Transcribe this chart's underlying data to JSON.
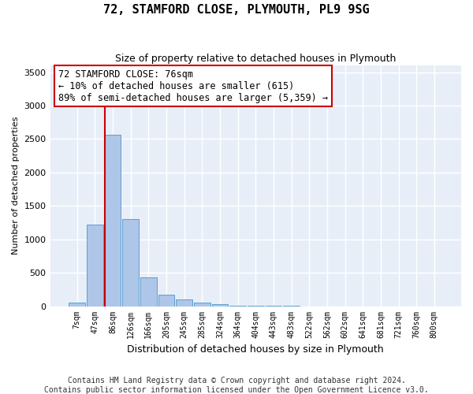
{
  "title1": "72, STAMFORD CLOSE, PLYMOUTH, PL9 9SG",
  "title2": "Size of property relative to detached houses in Plymouth",
  "xlabel": "Distribution of detached houses by size in Plymouth",
  "ylabel": "Number of detached properties",
  "annotation_line1": "72 STAMFORD CLOSE: 76sqm",
  "annotation_line2": "← 10% of detached houses are smaller (615)",
  "annotation_line3": "89% of semi-detached houses are larger (5,359) →",
  "footer1": "Contains HM Land Registry data © Crown copyright and database right 2024.",
  "footer2": "Contains public sector information licensed under the Open Government Licence v3.0.",
  "bar_labels": [
    "7sqm",
    "47sqm",
    "86sqm",
    "126sqm",
    "166sqm",
    "205sqm",
    "245sqm",
    "285sqm",
    "324sqm",
    "364sqm",
    "404sqm",
    "443sqm",
    "483sqm",
    "522sqm",
    "562sqm",
    "602sqm",
    "641sqm",
    "681sqm",
    "721sqm",
    "760sqm",
    "800sqm"
  ],
  "bar_values": [
    50,
    1220,
    2560,
    1300,
    430,
    175,
    105,
    50,
    25,
    10,
    5,
    2,
    1,
    0,
    0,
    0,
    0,
    0,
    0,
    0,
    0
  ],
  "bar_color": "#aec6e8",
  "bar_edgecolor": "#5a9fd4",
  "property_line_color": "#cc0000",
  "property_line_x": 1.57,
  "ylim": [
    0,
    3600
  ],
  "yticks": [
    0,
    500,
    1000,
    1500,
    2000,
    2500,
    3000,
    3500
  ],
  "bg_color": "#e8eef8",
  "grid_color": "#ffffff",
  "fig_bg_color": "#ffffff",
  "annotation_box_edgecolor": "#cc0000",
  "annotation_box_facecolor": "#ffffff",
  "title1_fontsize": 11,
  "title2_fontsize": 9,
  "xlabel_fontsize": 9,
  "ylabel_fontsize": 8,
  "tick_fontsize": 8,
  "xtick_fontsize": 7,
  "annotation_fontsize": 8.5,
  "footer_fontsize": 7
}
